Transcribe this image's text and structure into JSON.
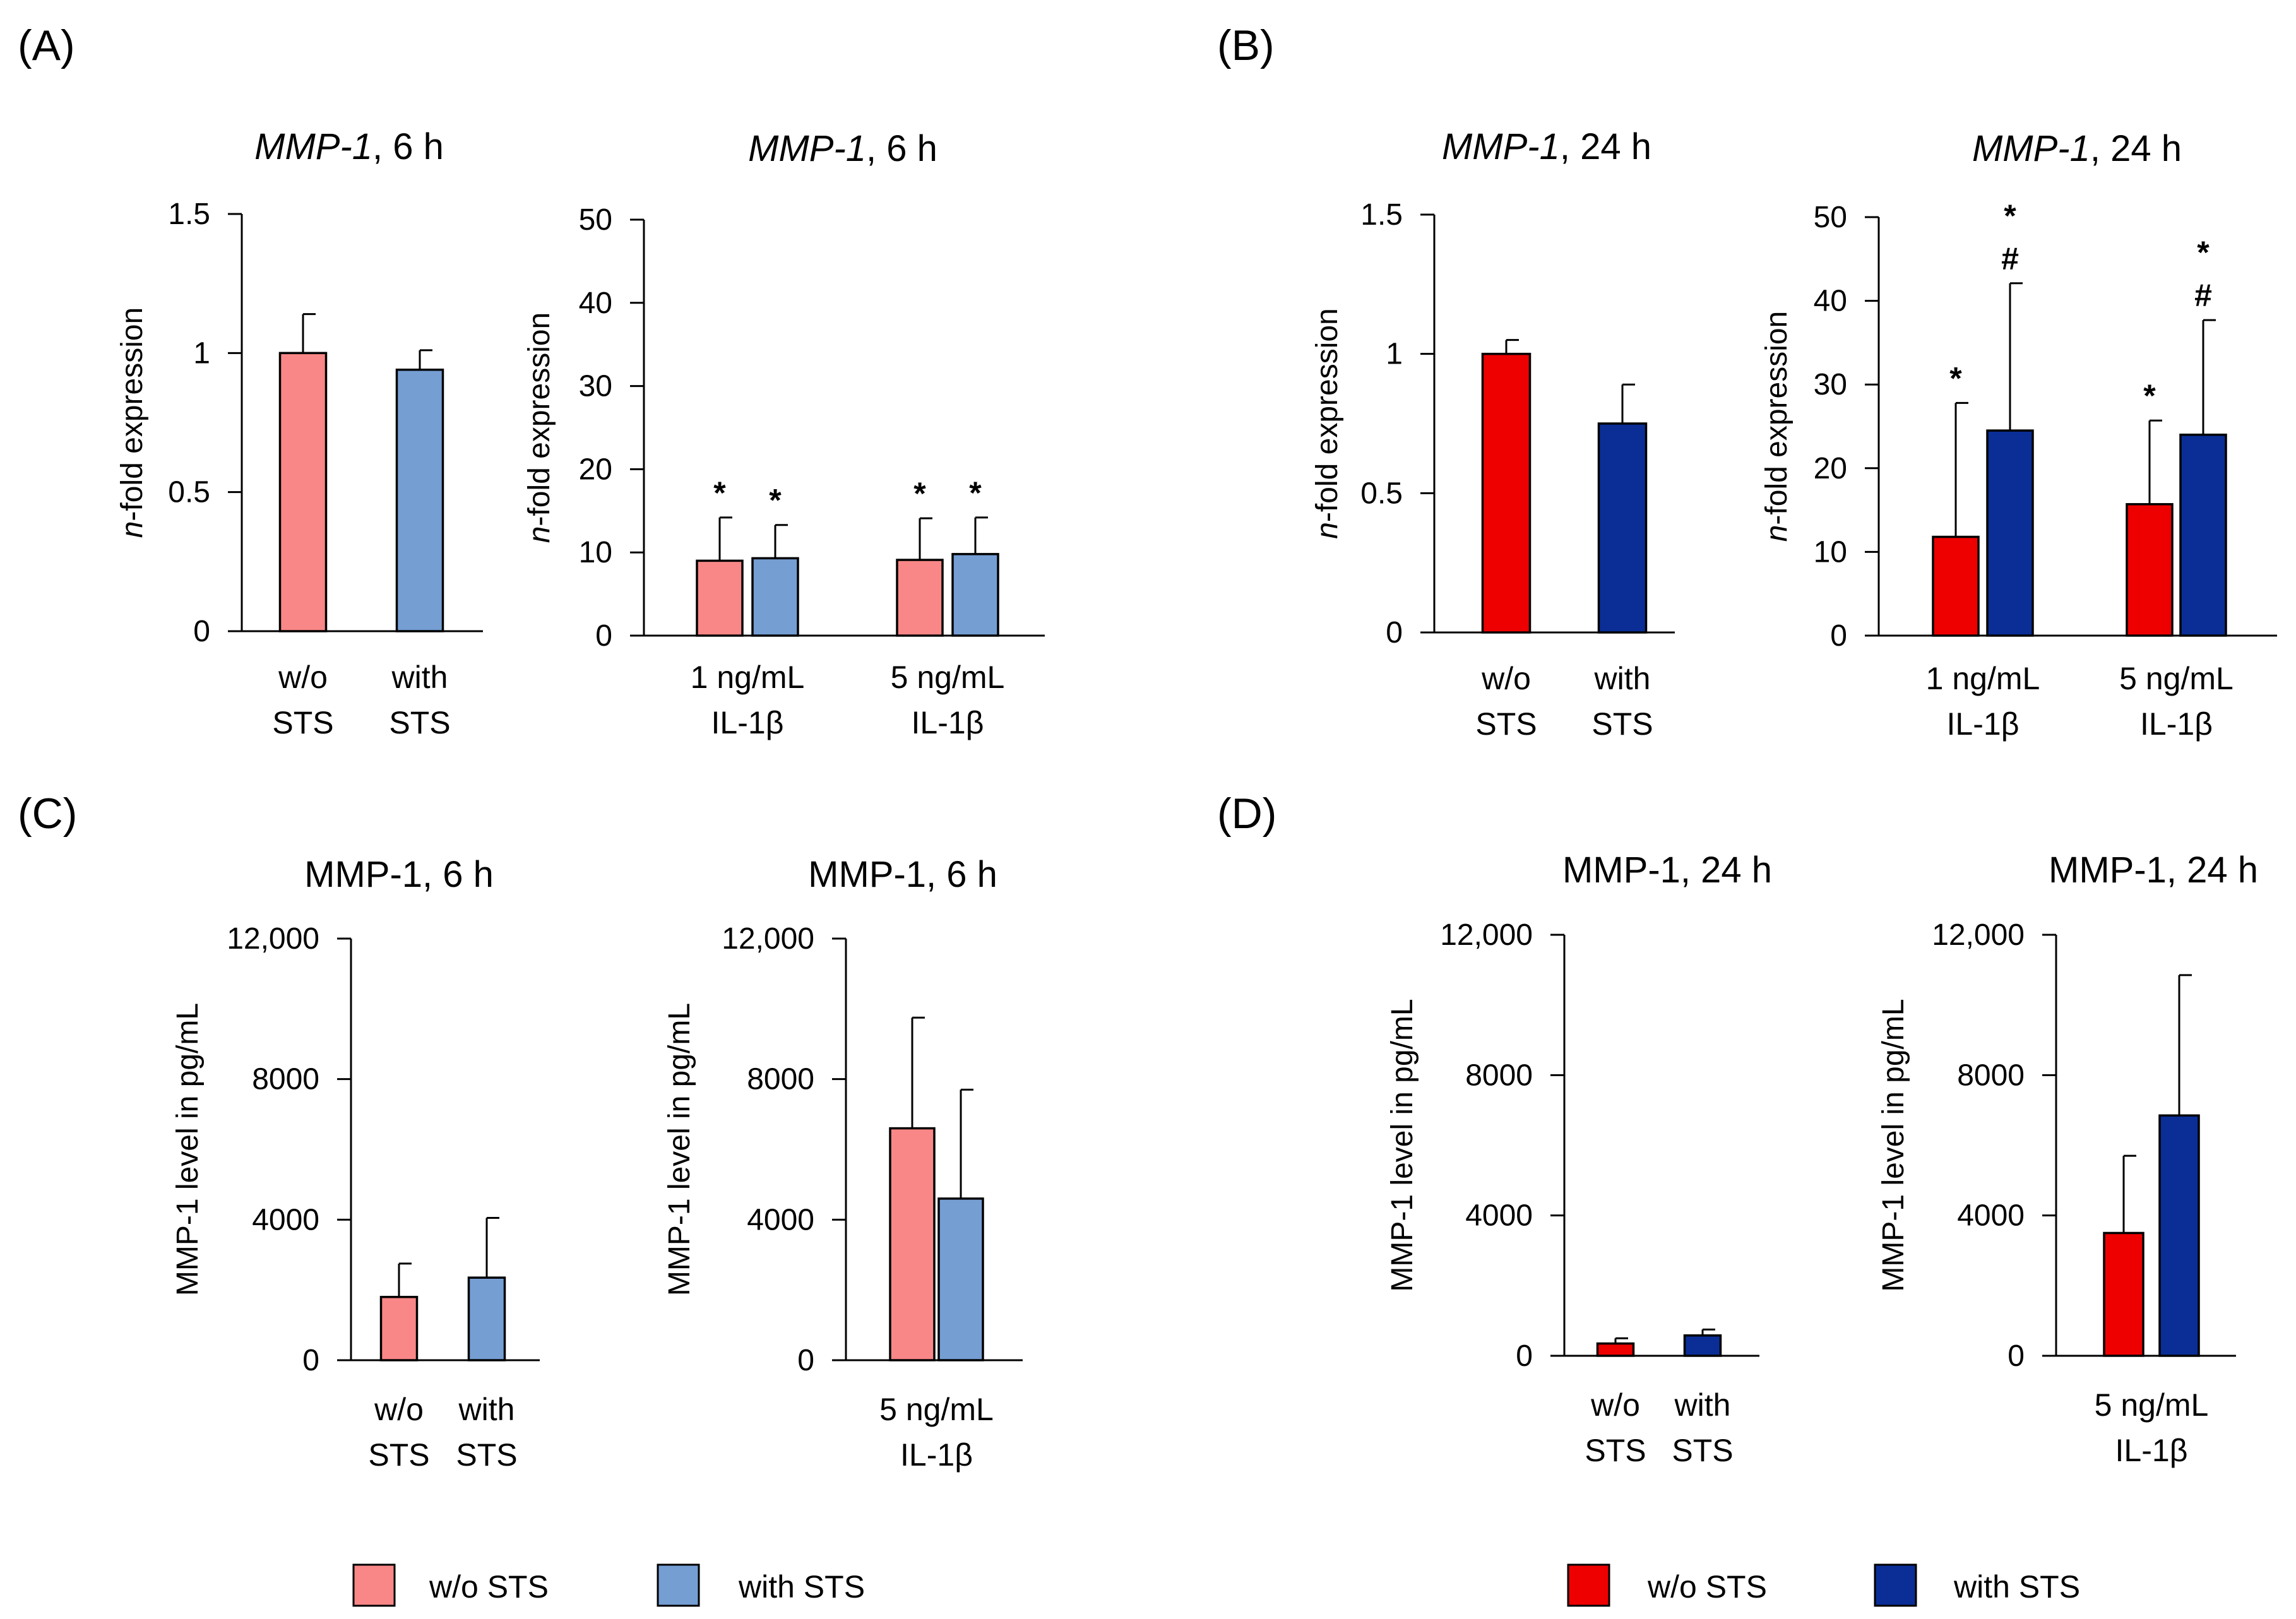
{
  "colors": {
    "light_wo": "#f98787",
    "light_with": "#759ed3",
    "dark_wo": "#ee0000",
    "dark_with": "#0a2e96",
    "legend_dark_with": "#1056a3"
  },
  "panels": [
    {
      "label": "(A)"
    },
    {
      "label": "(B)"
    },
    {
      "label": "(C)"
    },
    {
      "label": "(D)"
    }
  ],
  "legends": [
    {
      "wo": "w/o STS",
      "with": "with STS",
      "palette": "light"
    },
    {
      "wo": "w/o STS",
      "with": "with STS",
      "palette": "dark"
    }
  ],
  "chart_data": [
    {
      "id": "a1",
      "panel": "(A)",
      "type": "bar",
      "title": "MMP-1, 6 h",
      "title_gene": "MMP-1",
      "title_rest": ", 6 h",
      "title_italic": true,
      "ylabel": "n-fold expression",
      "ylabel_prefix": "n",
      "ylabel_rest": "-fold expression",
      "ylim": [
        0,
        1.5
      ],
      "yticks": [
        "0",
        "0.5",
        "1",
        "1.5"
      ],
      "ytick_values": [
        0,
        0.5,
        1,
        1.5
      ],
      "palette": "light",
      "groups": [
        {
          "label_lines": [
            "w/o",
            "STS"
          ],
          "bars": [
            {
              "series": "w/o STS",
              "value": 1.0,
              "error": 0.14
            }
          ]
        },
        {
          "label_lines": [
            "with",
            "STS"
          ],
          "bars": [
            {
              "series": "with STS",
              "value": 0.94,
              "error": 0.07
            }
          ]
        }
      ]
    },
    {
      "id": "a2",
      "panel": "(A)",
      "type": "bar",
      "title": "MMP-1, 6 h",
      "title_gene": "MMP-1",
      "title_rest": ", 6 h",
      "title_italic": true,
      "ylabel": "n-fold expression",
      "ylabel_prefix": "n",
      "ylabel_rest": "-fold expression",
      "ylim": [
        0,
        50
      ],
      "yticks": [
        "0",
        "10",
        "20",
        "30",
        "40",
        "50"
      ],
      "ytick_values": [
        0,
        10,
        20,
        30,
        40,
        50
      ],
      "palette": "light",
      "groups": [
        {
          "label_lines": [
            "1 ng/mL",
            "IL-1β"
          ],
          "bars": [
            {
              "series": "w/o STS",
              "value": 9.0,
              "error": 5.2,
              "marks": [
                "*"
              ]
            },
            {
              "series": "with STS",
              "value": 9.3,
              "error": 4.0,
              "marks": [
                "*"
              ]
            }
          ]
        },
        {
          "label_lines": [
            "5 ng/mL",
            "IL-1β"
          ],
          "bars": [
            {
              "series": "w/o STS",
              "value": 9.1,
              "error": 5.0,
              "marks": [
                "*"
              ]
            },
            {
              "series": "with STS",
              "value": 9.8,
              "error": 4.4,
              "marks": [
                "*"
              ]
            }
          ]
        }
      ]
    },
    {
      "id": "b1",
      "panel": "(B)",
      "type": "bar",
      "title": "MMP-1, 24 h",
      "title_gene": "MMP-1",
      "title_rest": ", 24 h",
      "title_italic": true,
      "ylabel": "n-fold expression",
      "ylabel_prefix": "n",
      "ylabel_rest": "-fold expression",
      "ylim": [
        0,
        1.5
      ],
      "yticks": [
        "0",
        "0.5",
        "1",
        "1.5"
      ],
      "ytick_values": [
        0,
        0.5,
        1,
        1.5
      ],
      "palette": "dark",
      "groups": [
        {
          "label_lines": [
            "w/o",
            "STS"
          ],
          "bars": [
            {
              "series": "w/o STS",
              "value": 1.0,
              "error": 0.05
            }
          ]
        },
        {
          "label_lines": [
            "with",
            "STS"
          ],
          "bars": [
            {
              "series": "with STS",
              "value": 0.75,
              "error": 0.14
            }
          ]
        }
      ]
    },
    {
      "id": "b2",
      "panel": "(B)",
      "type": "bar",
      "title": "MMP-1, 24 h",
      "title_gene": "MMP-1",
      "title_rest": ", 24 h",
      "title_italic": true,
      "ylabel": "n-fold expression",
      "ylabel_prefix": "n",
      "ylabel_rest": "-fold expression",
      "ylim": [
        0,
        50
      ],
      "yticks": [
        "0",
        "10",
        "20",
        "30",
        "40",
        "50"
      ],
      "ytick_values": [
        0,
        10,
        20,
        30,
        40,
        50
      ],
      "palette": "dark",
      "groups": [
        {
          "label_lines": [
            "1 ng/mL",
            "IL-1β"
          ],
          "bars": [
            {
              "series": "w/o STS",
              "value": 11.8,
              "error": 16.0,
              "marks": [
                "*"
              ]
            },
            {
              "series": "with STS",
              "value": 24.5,
              "error": 17.6,
              "marks": [
                "#",
                "*"
              ]
            }
          ]
        },
        {
          "label_lines": [
            "5 ng/mL",
            "IL-1β"
          ],
          "bars": [
            {
              "series": "w/o STS",
              "value": 15.7,
              "error": 10.0,
              "marks": [
                "*"
              ]
            },
            {
              "series": "with STS",
              "value": 24.0,
              "error": 13.7,
              "marks": [
                "#",
                "*"
              ]
            }
          ]
        }
      ]
    },
    {
      "id": "c1",
      "panel": "(C)",
      "type": "bar",
      "title": "MMP-1, 6 h",
      "title_italic": false,
      "ylabel": "MMP-1 level in pg/mL",
      "ylim": [
        0,
        12000
      ],
      "yticks": [
        "0",
        "4000",
        "8000",
        "12,000"
      ],
      "ytick_values": [
        0,
        4000,
        8000,
        12000
      ],
      "palette": "light",
      "groups": [
        {
          "label_lines": [
            "w/o",
            "STS"
          ],
          "bars": [
            {
              "series": "w/o STS",
              "value": 1800,
              "error": 950
            }
          ]
        },
        {
          "label_lines": [
            "with",
            "STS"
          ],
          "bars": [
            {
              "series": "with STS",
              "value": 2350,
              "error": 1700
            }
          ]
        }
      ]
    },
    {
      "id": "c2",
      "panel": "(C)",
      "type": "bar",
      "title": "MMP-1, 6 h",
      "title_italic": false,
      "ylabel": "MMP-1 level in pg/mL",
      "ylim": [
        0,
        12000
      ],
      "yticks": [
        "0",
        "4000",
        "8000",
        "12,000"
      ],
      "ytick_values": [
        0,
        4000,
        8000,
        12000
      ],
      "palette": "light",
      "groups": [
        {
          "label_lines": [
            "5 ng/mL",
            "IL-1β"
          ],
          "bars": [
            {
              "series": "w/o STS",
              "value": 6600,
              "error": 3150
            },
            {
              "series": "with STS",
              "value": 4600,
              "error": 3100
            }
          ]
        }
      ]
    },
    {
      "id": "d1",
      "panel": "(D)",
      "type": "bar",
      "title": "MMP-1, 24 h",
      "title_italic": false,
      "ylabel": "MMP-1 level in pg/mL",
      "ylim": [
        0,
        12000
      ],
      "yticks": [
        "0",
        "4000",
        "8000",
        "12,000"
      ],
      "ytick_values": [
        0,
        4000,
        8000,
        12000
      ],
      "palette": "dark",
      "groups": [
        {
          "label_lines": [
            "w/o",
            "STS"
          ],
          "bars": [
            {
              "series": "w/o STS",
              "value": 350,
              "error": 150
            }
          ]
        },
        {
          "label_lines": [
            "with",
            "STS"
          ],
          "bars": [
            {
              "series": "with STS",
              "value": 580,
              "error": 170
            }
          ]
        }
      ]
    },
    {
      "id": "d2",
      "panel": "(D)",
      "type": "bar",
      "title": "MMP-1, 24 h",
      "title_italic": false,
      "ylabel": "MMP-1 level in pg/mL",
      "ylim": [
        0,
        12000
      ],
      "yticks": [
        "0",
        "4000",
        "8000",
        "12,000"
      ],
      "ytick_values": [
        0,
        4000,
        8000,
        12000
      ],
      "palette": "dark",
      "groups": [
        {
          "label_lines": [
            "5 ng/mL",
            "IL-1β"
          ],
          "bars": [
            {
              "series": "w/o STS",
              "value": 3500,
              "error": 2200
            },
            {
              "series": "with STS",
              "value": 6850,
              "error": 4000
            }
          ]
        }
      ]
    }
  ]
}
